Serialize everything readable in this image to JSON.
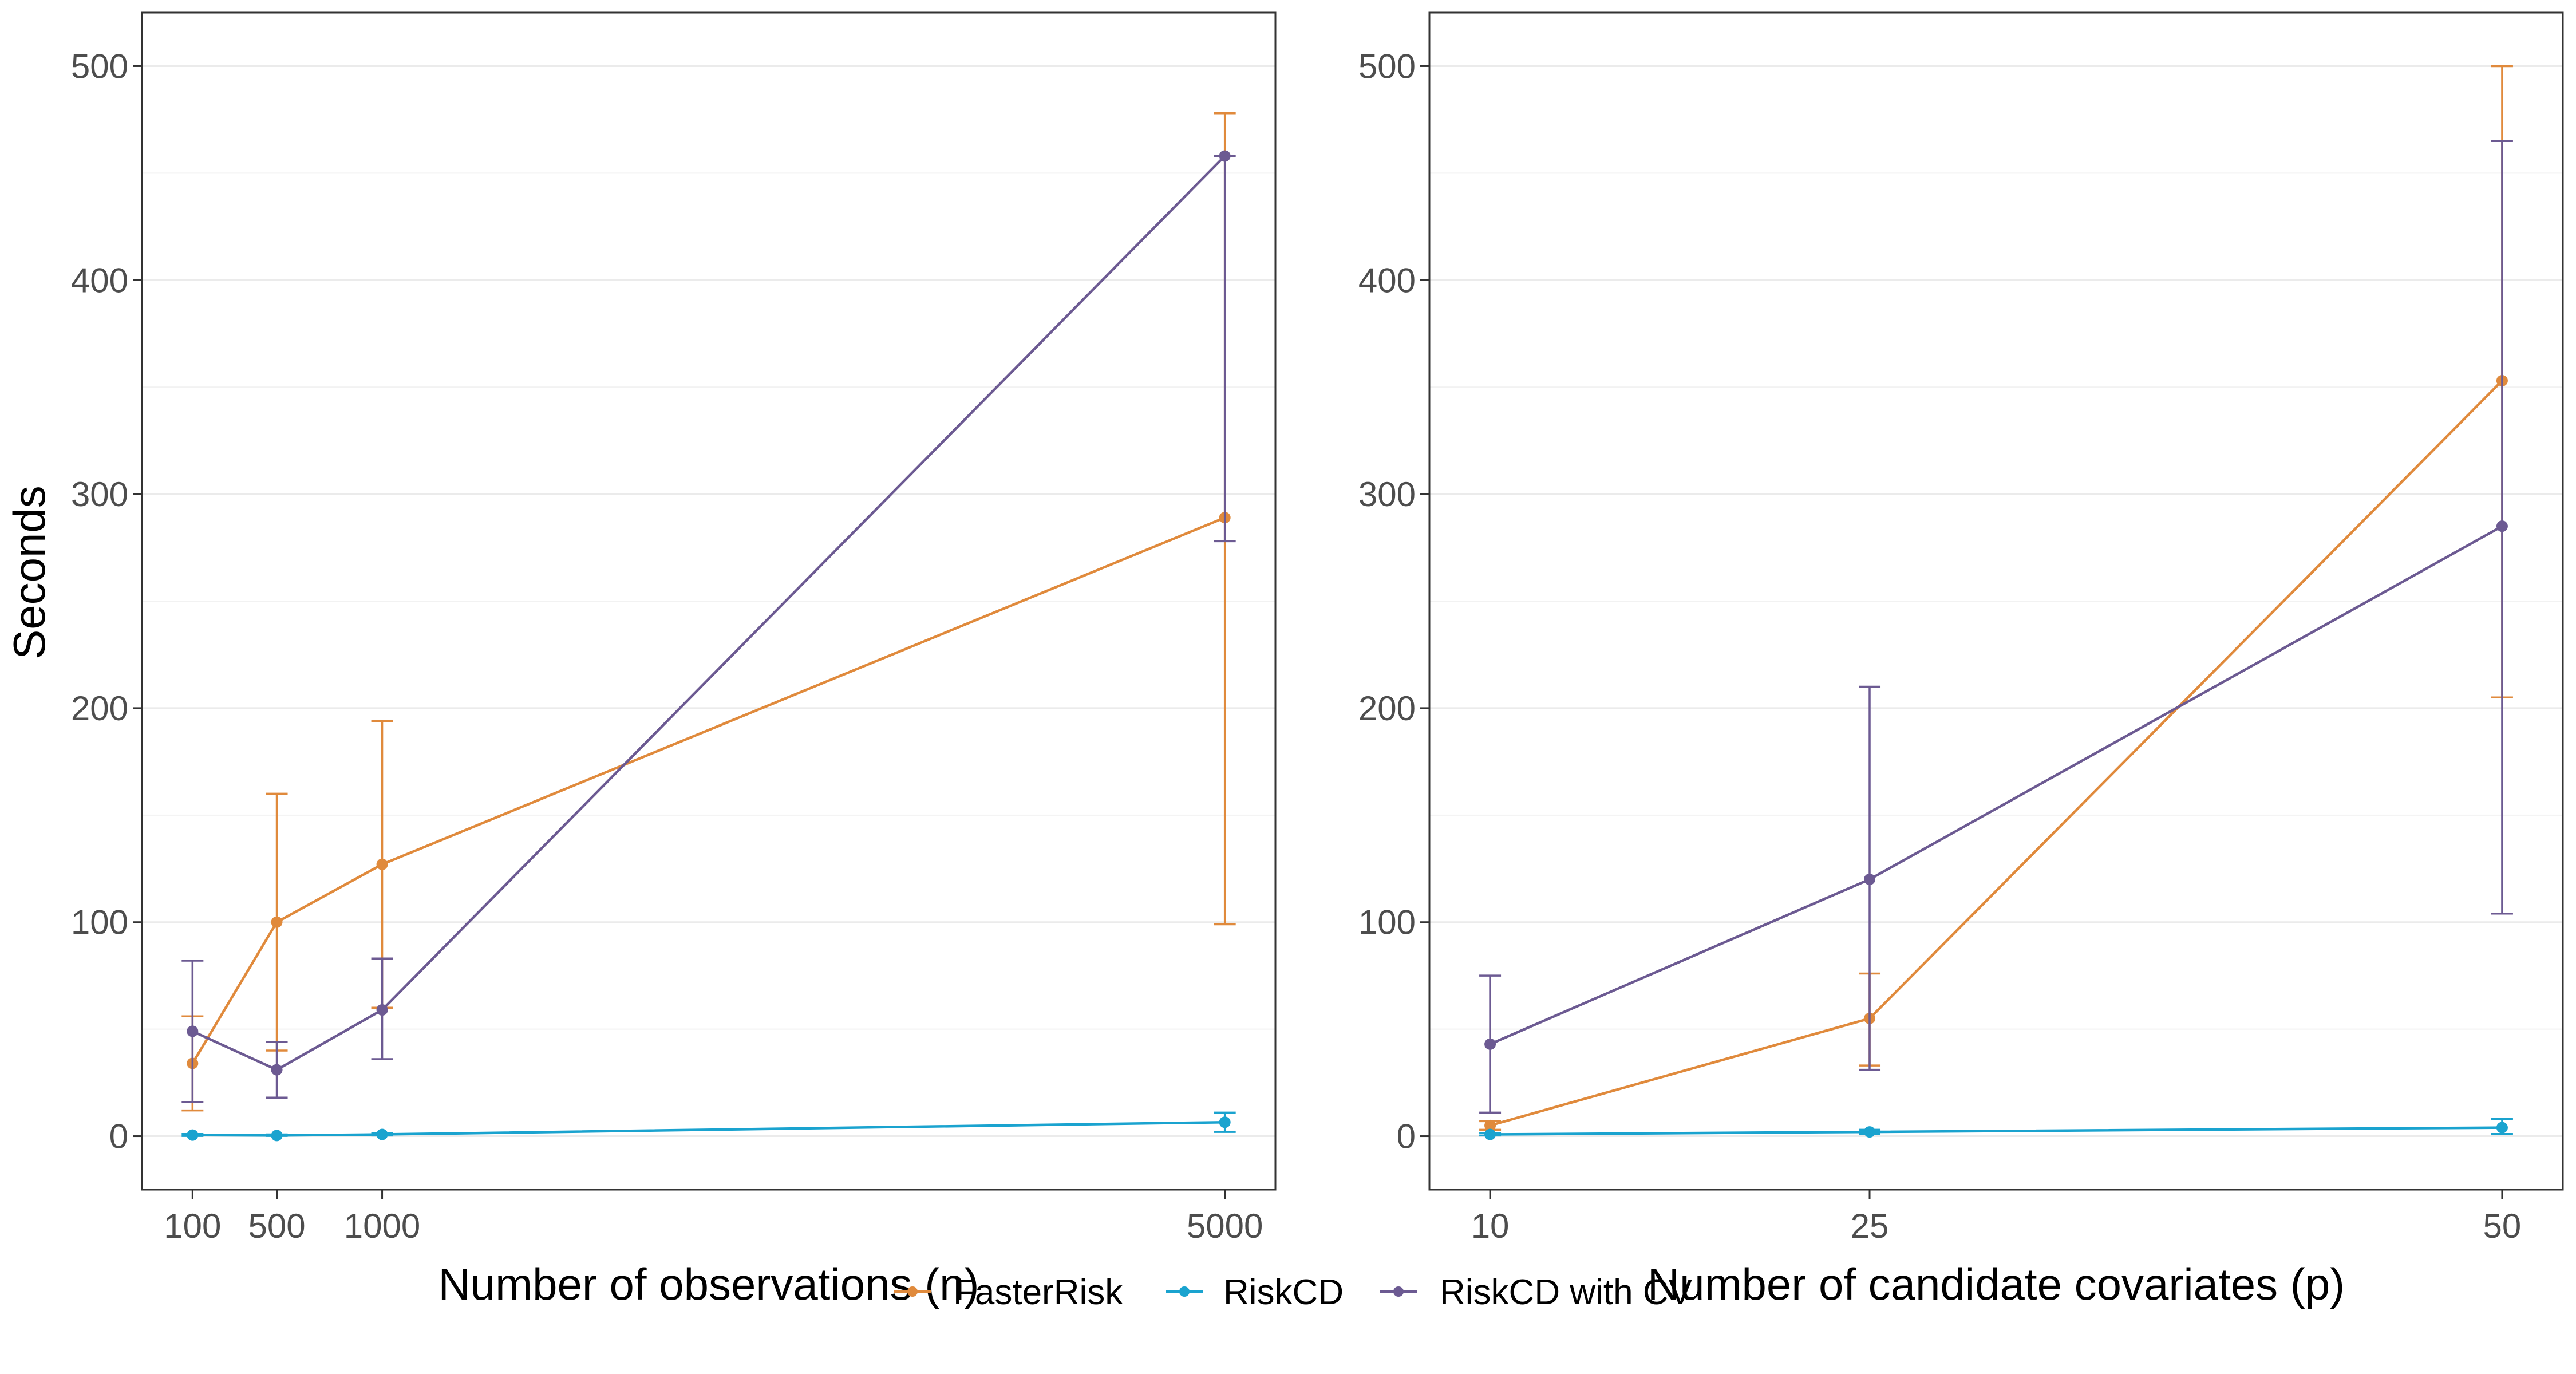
{
  "ylabel": "Seconds",
  "legend": {
    "position": "bottom",
    "items": [
      {
        "label": "FasterRisk",
        "color": "#E08A3C"
      },
      {
        "label": "RiskCD",
        "color": "#1AA3CF"
      },
      {
        "label": "RiskCD with CV",
        "color": "#6C5A92"
      }
    ]
  },
  "chart_data": [
    {
      "type": "line",
      "xlabel": "Number of observations (n)",
      "ylabel": "Seconds",
      "x": [
        100,
        500,
        1000,
        5000
      ],
      "xticks": [
        "100",
        "500",
        "1000",
        "5000"
      ],
      "xlim": [
        -140,
        5240
      ],
      "ylim": [
        -25,
        525
      ],
      "yticks": [
        "0",
        "100",
        "200",
        "300",
        "400",
        "500"
      ],
      "grid": true,
      "series": [
        {
          "name": "FasterRisk",
          "color": "#E08A3C",
          "values": [
            34,
            100,
            127,
            289
          ],
          "err_low": [
            12,
            40,
            60,
            99
          ],
          "err_high": [
            56,
            160,
            194,
            478
          ]
        },
        {
          "name": "RiskCD",
          "color": "#1AA3CF",
          "values": [
            0.5,
            0.3,
            0.8,
            6.5
          ],
          "err_low": [
            0.1,
            0.1,
            0.3,
            2
          ],
          "err_high": [
            1,
            0.8,
            1.5,
            11
          ]
        },
        {
          "name": "RiskCD with CV",
          "color": "#6C5A92",
          "values": [
            49,
            31,
            59,
            458
          ],
          "err_low": [
            16,
            18,
            36,
            278
          ],
          "err_high": [
            82,
            44,
            83,
            458
          ]
        }
      ]
    },
    {
      "type": "line",
      "xlabel": "Number of candidate covariates (p)",
      "ylabel": "",
      "x": [
        10,
        25,
        50
      ],
      "xticks": [
        "10",
        "25",
        "50"
      ],
      "xlim": [
        7.6,
        52.4
      ],
      "ylim": [
        -25,
        525
      ],
      "yticks": [
        "0",
        "100",
        "200",
        "300",
        "400",
        "500"
      ],
      "grid": true,
      "series": [
        {
          "name": "FasterRisk",
          "color": "#E08A3C",
          "values": [
            5,
            55,
            353
          ],
          "err_low": [
            3,
            33,
            205
          ],
          "err_high": [
            7,
            76,
            500
          ]
        },
        {
          "name": "RiskCD",
          "color": "#1AA3CF",
          "values": [
            0.8,
            2,
            4
          ],
          "err_low": [
            0.3,
            1,
            1
          ],
          "err_high": [
            1.5,
            3,
            8
          ]
        },
        {
          "name": "RiskCD with CV",
          "color": "#6C5A92",
          "values": [
            43,
            120,
            285
          ],
          "err_low": [
            11,
            31,
            104
          ],
          "err_high": [
            75,
            210,
            465
          ]
        }
      ]
    }
  ]
}
